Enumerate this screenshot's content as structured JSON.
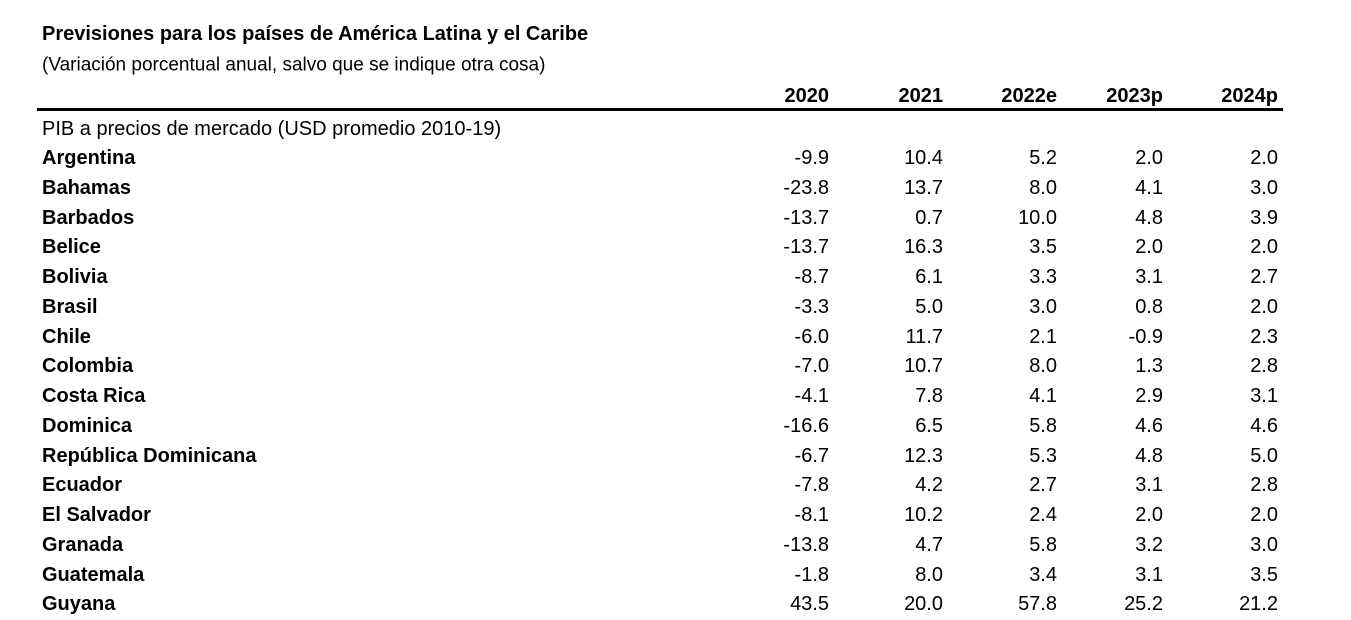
{
  "header": {
    "title": "Previsiones para los países de América Latina y el Caribe",
    "subtitle": "(Variación porcentual anual, salvo que se indique otra cosa)"
  },
  "table": {
    "columns": [
      "2020",
      "2021",
      "2022e",
      "2023p",
      "2024p"
    ],
    "section": "PIB a precios de mercado (USD promedio 2010-19)",
    "rows": [
      [
        "Argentina",
        "-9.9",
        "10.4",
        "5.2",
        "2.0",
        "2.0"
      ],
      [
        "Bahamas",
        "-23.8",
        "13.7",
        "8.0",
        "4.1",
        "3.0"
      ],
      [
        "Barbados",
        "-13.7",
        "0.7",
        "10.0",
        "4.8",
        "3.9"
      ],
      [
        "Belice",
        "-13.7",
        "16.3",
        "3.5",
        "2.0",
        "2.0"
      ],
      [
        "Bolivia",
        "-8.7",
        "6.1",
        "3.3",
        "3.1",
        "2.7"
      ],
      [
        "Brasil",
        "-3.3",
        "5.0",
        "3.0",
        "0.8",
        "2.0"
      ],
      [
        "Chile",
        "-6.0",
        "11.7",
        "2.1",
        "-0.9",
        "2.3"
      ],
      [
        "Colombia",
        "-7.0",
        "10.7",
        "8.0",
        "1.3",
        "2.8"
      ],
      [
        "Costa Rica",
        "-4.1",
        "7.8",
        "4.1",
        "2.9",
        "3.1"
      ],
      [
        "Dominica",
        "-16.6",
        "6.5",
        "5.8",
        "4.6",
        "4.6"
      ],
      [
        "República Dominicana",
        "-6.7",
        "12.3",
        "5.3",
        "4.8",
        "5.0"
      ],
      [
        "Ecuador",
        "-7.8",
        "4.2",
        "2.7",
        "3.1",
        "2.8"
      ],
      [
        "El Salvador",
        "-8.1",
        "10.2",
        "2.4",
        "2.0",
        "2.0"
      ],
      [
        "Granada",
        "-13.8",
        "4.7",
        "5.8",
        "3.2",
        "3.0"
      ],
      [
        "Guatemala",
        "-1.8",
        "8.0",
        "3.4",
        "3.1",
        "3.5"
      ],
      [
        "Guyana",
        "43.5",
        "20.0",
        "57.8",
        "25.2",
        "21.2"
      ]
    ]
  }
}
